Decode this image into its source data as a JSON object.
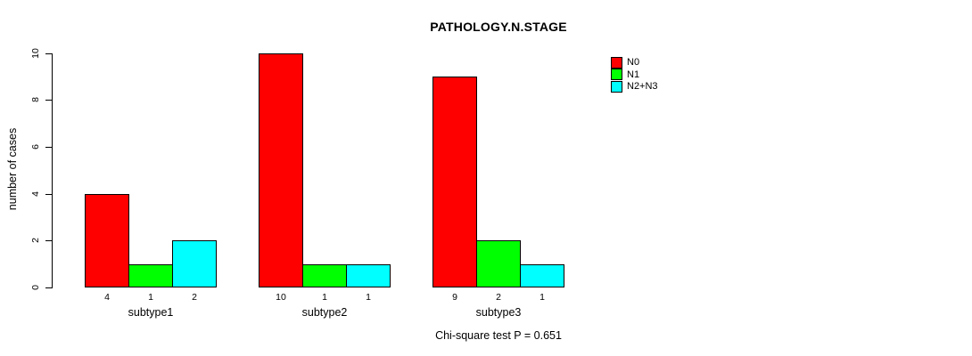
{
  "chart_data": {
    "type": "bar",
    "title": "PATHOLOGY.N.STAGE",
    "ylabel": "number of cases",
    "xlabel": "",
    "annotation": "Chi-square test P = 0.651",
    "categories": [
      "subtype1",
      "subtype2",
      "subtype3"
    ],
    "series": [
      {
        "name": "N0",
        "color": "#FF0000",
        "values": [
          4,
          10,
          9
        ]
      },
      {
        "name": "N1",
        "color": "#00FF00",
        "values": [
          1,
          1,
          2
        ]
      },
      {
        "name": "N2+N3",
        "color": "#00FFFF",
        "values": [
          2,
          1,
          1
        ]
      }
    ],
    "bar_value_labels": [
      [
        4,
        1,
        2
      ],
      [
        10,
        1,
        1
      ],
      [
        9,
        2,
        1
      ]
    ],
    "yticks": [
      0,
      2,
      4,
      6,
      8,
      10
    ],
    "ylim": [
      0,
      10
    ],
    "grid": false,
    "legend_position": "top-right",
    "axis_color": "#000000",
    "background_color": "#FFFFFF"
  }
}
